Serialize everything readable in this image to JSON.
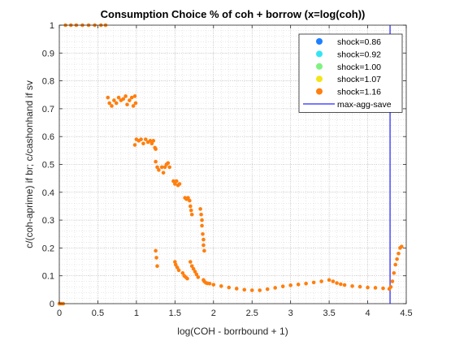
{
  "chart_data": {
    "type": "scatter",
    "title": "Consumption Choice % of coh + borrow (x=log(coh))",
    "xlabel": "log(COH - borrbound + 1)",
    "ylabel": "c/(coh-aprime) if br; c/cashonhand if sv",
    "xlim": [
      0,
      4.5
    ],
    "ylim": [
      0,
      1
    ],
    "xticks": [
      "0",
      "0.5",
      "1",
      "1.5",
      "2",
      "2.5",
      "3",
      "3.5",
      "4",
      "4.5"
    ],
    "yticks": [
      "0",
      "0.1",
      "0.2",
      "0.3",
      "0.4",
      "0.5",
      "0.6",
      "0.7",
      "0.8",
      "0.9",
      "1"
    ],
    "grid": "minor dotted",
    "legend_position": "top-right",
    "colors": {
      "shock_0_86": "#1f7fff",
      "shock_0_92": "#33e5f2",
      "shock_1_00": "#7ff27f",
      "shock_1_07": "#f2e51a",
      "shock_1_16": "#ff7f0e",
      "max_agg_save": "#4d4dff"
    },
    "series": [
      {
        "name": "shock=0.86",
        "color": "#1f7fff",
        "points": []
      },
      {
        "name": "shock=0.92",
        "color": "#33e5f2",
        "points": []
      },
      {
        "name": "shock=1.00",
        "color": "#7ff27f",
        "points": []
      },
      {
        "name": "shock=1.07",
        "color": "#f2e51a",
        "points": []
      },
      {
        "name": "shock=1.16",
        "color": "#ff7f0e",
        "points": [
          [
            0.0,
            0.0
          ],
          [
            0.02,
            0.0
          ],
          [
            0.05,
            0.0
          ],
          [
            0.08,
            1.0
          ],
          [
            0.15,
            1.0
          ],
          [
            0.22,
            1.0
          ],
          [
            0.3,
            1.0
          ],
          [
            0.38,
            1.0
          ],
          [
            0.46,
            1.0
          ],
          [
            0.54,
            1.0
          ],
          [
            0.6,
            1.0
          ],
          [
            0.63,
            0.74
          ],
          [
            0.65,
            0.72
          ],
          [
            0.68,
            0.71
          ],
          [
            0.71,
            0.73
          ],
          [
            0.74,
            0.72
          ],
          [
            0.77,
            0.74
          ],
          [
            0.8,
            0.73
          ],
          [
            0.83,
            0.735
          ],
          [
            0.86,
            0.745
          ],
          [
            0.88,
            0.715
          ],
          [
            0.91,
            0.73
          ],
          [
            0.94,
            0.74
          ],
          [
            0.96,
            0.71
          ],
          [
            0.98,
            0.745
          ],
          [
            0.99,
            0.72
          ],
          [
            0.98,
            0.57
          ],
          [
            1.0,
            0.59
          ],
          [
            1.03,
            0.585
          ],
          [
            1.06,
            0.59
          ],
          [
            1.09,
            0.575
          ],
          [
            1.12,
            0.59
          ],
          [
            1.15,
            0.58
          ],
          [
            1.18,
            0.585
          ],
          [
            1.2,
            0.575
          ],
          [
            1.22,
            0.585
          ],
          [
            1.24,
            0.56
          ],
          [
            1.25,
            0.555
          ],
          [
            1.25,
            0.51
          ],
          [
            1.27,
            0.49
          ],
          [
            1.29,
            0.48
          ],
          [
            1.33,
            0.49
          ],
          [
            1.35,
            0.47
          ],
          [
            1.37,
            0.49
          ],
          [
            1.39,
            0.5
          ],
          [
            1.41,
            0.505
          ],
          [
            1.43,
            0.49
          ],
          [
            1.48,
            0.44
          ],
          [
            1.5,
            0.43
          ],
          [
            1.52,
            0.44
          ],
          [
            1.54,
            0.425
          ],
          [
            1.56,
            0.43
          ],
          [
            1.63,
            0.38
          ],
          [
            1.65,
            0.375
          ],
          [
            1.67,
            0.38
          ],
          [
            1.69,
            0.37
          ],
          [
            1.7,
            0.35
          ],
          [
            1.71,
            0.335
          ],
          [
            1.72,
            0.32
          ],
          [
            1.83,
            0.34
          ],
          [
            1.84,
            0.32
          ],
          [
            1.85,
            0.3
          ],
          [
            1.85,
            0.28
          ],
          [
            1.86,
            0.25
          ],
          [
            1.87,
            0.23
          ],
          [
            1.87,
            0.21
          ],
          [
            1.88,
            0.19
          ],
          [
            1.7,
            0.15
          ],
          [
            1.72,
            0.135
          ],
          [
            1.74,
            0.125
          ],
          [
            1.76,
            0.115
          ],
          [
            1.78,
            0.105
          ],
          [
            1.8,
            0.095
          ],
          [
            1.25,
            0.19
          ],
          [
            1.26,
            0.165
          ],
          [
            1.27,
            0.135
          ],
          [
            1.5,
            0.15
          ],
          [
            1.51,
            0.14
          ],
          [
            1.53,
            0.13
          ],
          [
            1.55,
            0.12
          ],
          [
            1.6,
            0.11
          ],
          [
            1.62,
            0.1
          ],
          [
            1.64,
            0.095
          ],
          [
            1.66,
            0.09
          ],
          [
            1.87,
            0.085
          ],
          [
            1.88,
            0.08
          ],
          [
            1.9,
            0.075
          ],
          [
            1.92,
            0.073
          ],
          [
            1.95,
            0.072
          ],
          [
            2.0,
            0.068
          ],
          [
            2.1,
            0.063
          ],
          [
            2.2,
            0.058
          ],
          [
            2.3,
            0.054
          ],
          [
            2.4,
            0.05
          ],
          [
            2.5,
            0.048
          ],
          [
            2.6,
            0.048
          ],
          [
            2.7,
            0.052
          ],
          [
            2.8,
            0.057
          ],
          [
            2.9,
            0.062
          ],
          [
            3.0,
            0.066
          ],
          [
            3.1,
            0.069
          ],
          [
            3.2,
            0.072
          ],
          [
            3.3,
            0.076
          ],
          [
            3.4,
            0.08
          ],
          [
            3.5,
            0.085
          ],
          [
            3.55,
            0.08
          ],
          [
            3.6,
            0.074
          ],
          [
            3.65,
            0.07
          ],
          [
            3.7,
            0.067
          ],
          [
            3.8,
            0.063
          ],
          [
            3.9,
            0.061
          ],
          [
            4.0,
            0.058
          ],
          [
            4.1,
            0.057
          ],
          [
            4.2,
            0.055
          ],
          [
            4.28,
            0.053
          ],
          [
            4.3,
            0.06
          ],
          [
            4.32,
            0.08
          ],
          [
            4.34,
            0.11
          ],
          [
            4.36,
            0.14
          ],
          [
            4.38,
            0.16
          ],
          [
            4.4,
            0.18
          ],
          [
            4.42,
            0.2
          ],
          [
            4.44,
            0.205
          ]
        ]
      }
    ],
    "reference_lines": [
      {
        "name": "max-agg-save",
        "x": 4.29,
        "color": "#4d4dff"
      }
    ]
  }
}
